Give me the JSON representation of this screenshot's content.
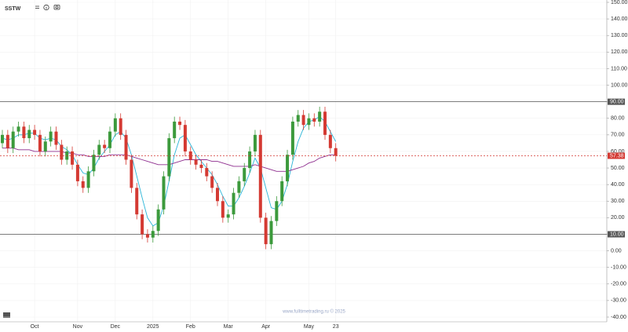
{
  "chart_data": {
    "type": "candlestick",
    "title": "SSTW",
    "watermark": "www.fulltimetrading.ru © 2025",
    "categories": [
      null,
      null,
      null,
      null,
      null,
      null,
      "Oct",
      null,
      null,
      null,
      null,
      null,
      null,
      null,
      "Nov",
      null,
      null,
      null,
      null,
      null,
      null,
      "Dec",
      null,
      null,
      null,
      null,
      null,
      null,
      "2025",
      null,
      null,
      null,
      null,
      null,
      null,
      "Feb",
      null,
      null,
      null,
      null,
      null,
      null,
      "Mar",
      null,
      null,
      null,
      null,
      null,
      null,
      "Apr",
      null,
      null,
      null,
      null,
      null,
      null,
      null,
      "May",
      null,
      null,
      null,
      null,
      "23"
    ],
    "open": [
      65,
      70,
      62,
      72,
      75,
      68,
      73,
      70,
      60,
      66,
      72,
      64,
      55,
      60,
      52,
      42,
      38,
      48,
      58,
      64,
      62,
      72,
      80,
      70,
      55,
      38,
      22,
      10,
      8,
      12,
      25,
      45,
      68,
      78,
      76,
      60,
      55,
      52,
      50,
      45,
      38,
      30,
      20,
      22,
      35,
      42,
      50,
      60,
      70,
      20,
      4,
      18,
      30,
      42,
      58,
      78,
      82,
      76,
      80,
      78,
      84,
      70,
      62
    ],
    "high": [
      73,
      73,
      75,
      78,
      78,
      76,
      76,
      73,
      69,
      75,
      75,
      67,
      63,
      63,
      55,
      45,
      51,
      61,
      67,
      67,
      75,
      83,
      83,
      73,
      58,
      41,
      25,
      13,
      15,
      28,
      48,
      71,
      81,
      81,
      79,
      63,
      58,
      55,
      53,
      48,
      41,
      33,
      25,
      38,
      45,
      53,
      63,
      73,
      73,
      23,
      21,
      33,
      45,
      61,
      81,
      85,
      85,
      83,
      83,
      87,
      87,
      73,
      65
    ],
    "low": [
      62,
      59,
      59,
      69,
      65,
      65,
      67,
      57,
      57,
      63,
      61,
      52,
      52,
      49,
      39,
      35,
      35,
      45,
      55,
      59,
      59,
      69,
      67,
      52,
      35,
      19,
      7,
      5,
      5,
      9,
      22,
      42,
      65,
      73,
      57,
      52,
      49,
      47,
      42,
      35,
      27,
      17,
      17,
      19,
      32,
      39,
      47,
      57,
      17,
      1,
      1,
      15,
      27,
      39,
      55,
      75,
      73,
      73,
      75,
      75,
      67,
      59,
      54
    ],
    "close": [
      70,
      62,
      72,
      75,
      68,
      73,
      70,
      60,
      66,
      72,
      64,
      55,
      60,
      52,
      42,
      38,
      48,
      58,
      64,
      62,
      72,
      80,
      70,
      55,
      38,
      22,
      10,
      8,
      12,
      25,
      45,
      68,
      78,
      76,
      60,
      55,
      52,
      50,
      45,
      38,
      30,
      20,
      22,
      35,
      42,
      50,
      60,
      70,
      20,
      4,
      18,
      30,
      42,
      58,
      78,
      82,
      76,
      80,
      78,
      84,
      70,
      62,
      57.38
    ],
    "up_color": "#3c9a3c",
    "down_color": "#d43a33",
    "series": [
      {
        "color": "#2bb5d8",
        "values": [
          68,
          67,
          68,
          70,
          70,
          71,
          71,
          68,
          67,
          68,
          67,
          63,
          61,
          58,
          52,
          47,
          46,
          50,
          56,
          60,
          64,
          70,
          72,
          68,
          58,
          45,
          32,
          20,
          15,
          17,
          27,
          42,
          58,
          68,
          70,
          64,
          58,
          54,
          50,
          46,
          40,
          33,
          27,
          27,
          32,
          39,
          47,
          56,
          50,
          38,
          26,
          25,
          30,
          40,
          54,
          66,
          74,
          78,
          79,
          81,
          78,
          72,
          66
        ]
      },
      {
        "color": "#8e2d8e",
        "values": [
          62,
          62,
          62,
          61,
          61,
          61,
          60,
          60,
          60,
          60,
          60,
          60,
          59,
          59,
          58,
          58,
          57,
          57,
          57,
          57,
          58,
          58,
          58,
          58,
          57,
          56,
          55,
          54,
          53,
          52,
          52,
          52,
          53,
          54,
          55,
          55,
          55,
          55,
          55,
          54,
          54,
          53,
          52,
          51,
          51,
          51,
          51,
          52,
          51,
          50,
          49,
          48,
          48,
          48,
          49,
          50,
          51,
          53,
          54,
          56,
          57,
          58,
          58
        ]
      }
    ],
    "levels": [
      {
        "value": 90,
        "label": "90.00"
      },
      {
        "value": 10,
        "label": "10.00"
      }
    ],
    "last_price": {
      "value": 57.38,
      "label": "57.38"
    },
    "ylim": [
      -40,
      150
    ],
    "yticks": [
      {
        "value": 150,
        "label": "150.00"
      },
      {
        "value": 140,
        "label": "140.00"
      },
      {
        "value": 130,
        "label": "130.00"
      },
      {
        "value": 120,
        "label": "120.00"
      },
      {
        "value": 110,
        "label": "110.00"
      },
      {
        "value": 100,
        "label": "100.00"
      },
      {
        "value": 90,
        "label": "90.00"
      },
      {
        "value": 80,
        "label": "80.00"
      },
      {
        "value": 70,
        "label": "70.00"
      },
      {
        "value": 60,
        "label": "60.00"
      },
      {
        "value": 50,
        "label": "50.00"
      },
      {
        "value": 40,
        "label": "40.00"
      },
      {
        "value": 30,
        "label": "30.00"
      },
      {
        "value": 20,
        "label": "20.00"
      },
      {
        "value": 10,
        "label": "10.00"
      },
      {
        "value": 0,
        "label": "0.00"
      },
      {
        "value": -10,
        "label": "-10.00"
      },
      {
        "value": -20,
        "label": "-20.00"
      },
      {
        "value": -30,
        "label": "-30.00"
      },
      {
        "value": -40,
        "label": "-40.00"
      }
    ],
    "grid": true
  }
}
